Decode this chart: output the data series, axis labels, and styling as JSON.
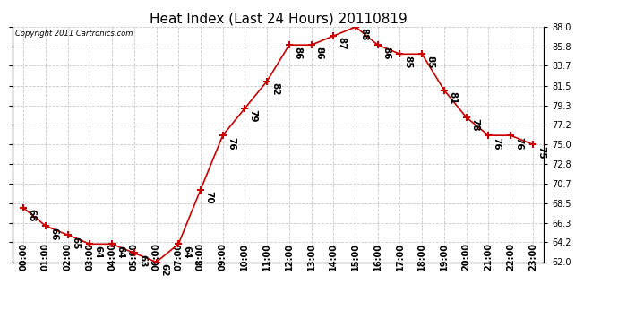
{
  "title": "Heat Index (Last 24 Hours) 20110819",
  "copyright": "Copyright 2011 Cartronics.com",
  "hours": [
    "00:00",
    "01:00",
    "02:00",
    "03:00",
    "04:00",
    "05:00",
    "06:00",
    "07:00",
    "08:00",
    "09:00",
    "10:00",
    "11:00",
    "12:00",
    "13:00",
    "14:00",
    "15:00",
    "16:00",
    "17:00",
    "18:00",
    "19:00",
    "20:00",
    "21:00",
    "22:00",
    "23:00"
  ],
  "values": [
    68,
    66,
    65,
    64,
    64,
    63,
    62,
    64,
    70,
    76,
    79,
    82,
    86,
    86,
    87,
    88,
    86,
    85,
    85,
    81,
    78,
    76,
    76,
    75
  ],
  "line_color": "#cc0000",
  "marker": "+",
  "marker_color": "#cc0000",
  "bg_color": "#ffffff",
  "grid_color": "#c8c8c8",
  "ylim_min": 62.0,
  "ylim_max": 88.0,
  "yticks": [
    62.0,
    64.2,
    66.3,
    68.5,
    70.7,
    72.8,
    75.0,
    77.2,
    79.3,
    81.5,
    83.7,
    85.8,
    88.0
  ],
  "title_fontsize": 11,
  "label_fontsize": 7,
  "annotation_fontsize": 7.5
}
